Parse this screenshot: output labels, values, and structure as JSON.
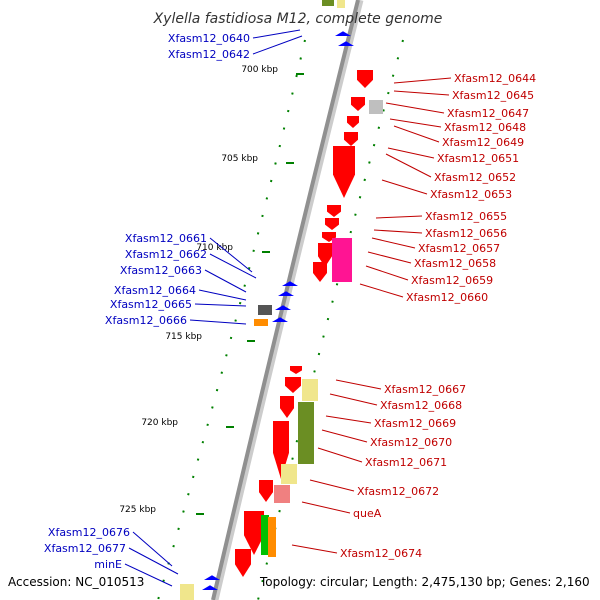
{
  "title": "Xylella fastidiosa M12, complete genome",
  "accession": "Accession: NC_010513",
  "topology": "Topology: circular; Length: 2,475,130 bp; Genes: 2,160",
  "colors": {
    "reverse_label": "#0000c0",
    "forward_label": "#c00000",
    "reverse_gene": "#0000ff",
    "forward_gene": "#ff0000",
    "backbone": "#909090",
    "tick": "#008000"
  },
  "ticks": [
    {
      "label": "700 kbp"
    },
    {
      "label": "705 kbp"
    },
    {
      "label": "710 kbp"
    },
    {
      "label": "715 kbp"
    },
    {
      "label": "720 kbp"
    },
    {
      "label": "725 kbp"
    }
  ],
  "reverse_labels": [
    "Xfasm12_0640",
    "Xfasm12_0642",
    "Xfasm12_0661",
    "Xfasm12_0662",
    "Xfasm12_0663",
    "Xfasm12_0664",
    "Xfasm12_0665",
    "Xfasm12_0666",
    "Xfasm12_0676",
    "Xfasm12_0677",
    "minE"
  ],
  "forward_labels": [
    "Xfasm12_0644",
    "Xfasm12_0645",
    "Xfasm12_0647",
    "Xfasm12_0648",
    "Xfasm12_0649",
    "Xfasm12_0651",
    "Xfasm12_0652",
    "Xfasm12_0653",
    "Xfasm12_0655",
    "Xfasm12_0656",
    "Xfasm12_0657",
    "Xfasm12_0658",
    "Xfasm12_0659",
    "Xfasm12_0660",
    "Xfasm12_0667",
    "Xfasm12_0668",
    "Xfasm12_0669",
    "Xfasm12_0670",
    "Xfasm12_0671",
    "Xfasm12_0672",
    "queA",
    "Xfasm12_0674"
  ]
}
